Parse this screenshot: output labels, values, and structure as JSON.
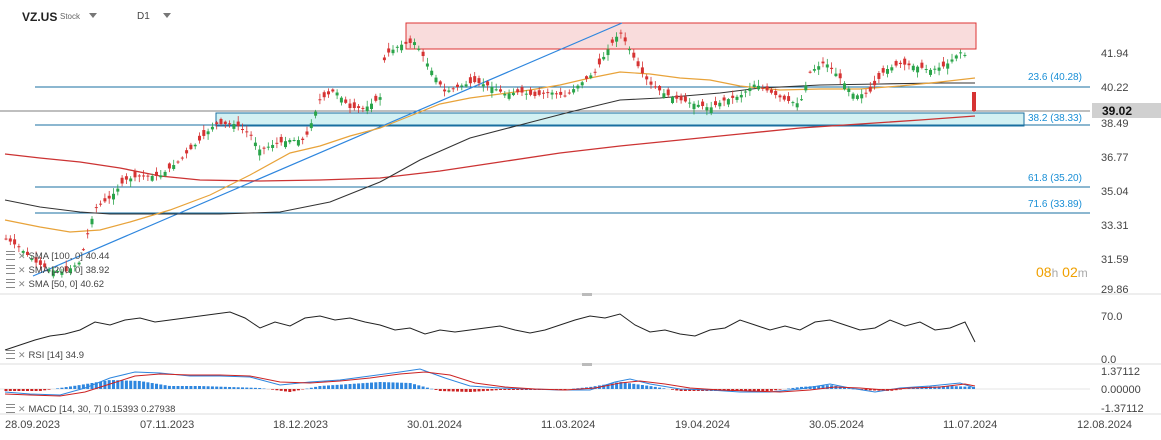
{
  "header": {
    "symbol": "VZ.US",
    "type": "Stock",
    "timeframe": "D1"
  },
  "price_axis": {
    "labels": [
      "41.94",
      "40.22",
      "38.49",
      "36.77",
      "35.04",
      "33.31",
      "31.59",
      "29.86"
    ],
    "current": "39.02"
  },
  "fib_levels": [
    {
      "label": "23.6 (40.28)"
    },
    {
      "label": "38.2 (38.33)"
    },
    {
      "label": "61.8 (35.20)"
    },
    {
      "label": "71.6 (33.89)"
    }
  ],
  "indicators": {
    "sma100": {
      "label": "SMA [100, 0]",
      "value": "40.44"
    },
    "sma200": {
      "label": "SMA [200, 0]",
      "value": "38.92"
    },
    "sma50": {
      "label": "SMA [50, 0]",
      "value": "40.62"
    },
    "rsi": {
      "label": "RSI [14]",
      "value": "34.9"
    },
    "macd": {
      "label": "MACD [14, 30, 7]",
      "value1": "0.15393",
      "value2": "0.27938"
    }
  },
  "rsi_axis": [
    "70.0",
    "0.0"
  ],
  "macd_axis": [
    "1.37112",
    "0.00000",
    "-1.37112"
  ],
  "date_axis": [
    "28.09.2023",
    "07.11.2023",
    "18.12.2023",
    "30.01.2024",
    "11.03.2024",
    "19.04.2024",
    "30.05.2024",
    "11.07.2024",
    "12.08.2024"
  ],
  "timer": {
    "hours": "08",
    "h": "h",
    "minutes": "02",
    "m": "m"
  },
  "colors": {
    "up": "#2aa44a",
    "down": "#d63333",
    "sma50": "#e8a33a",
    "sma100": "#333333",
    "sma200": "#cc3333",
    "fib": "#1a6fa0",
    "zone_top": "#f8d6d6",
    "zone_bottom": "#cdeff2"
  }
}
